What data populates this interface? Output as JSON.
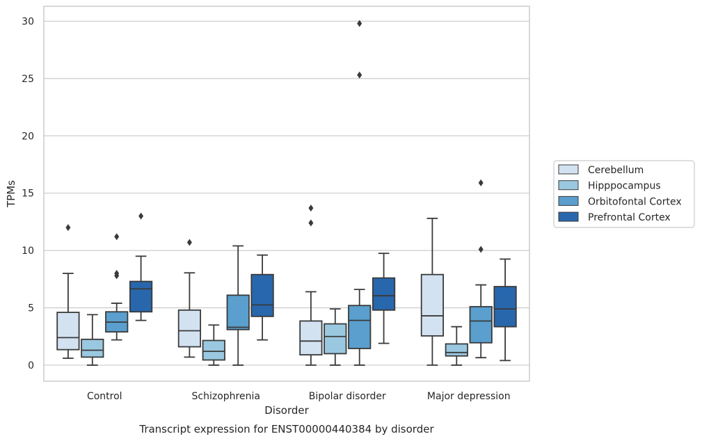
{
  "chart_data": {
    "type": "box",
    "xlabel": "Disorder",
    "ylabel": "TPMs",
    "caption": "Transcript expression for ENST00000440384 by disorder",
    "ylim": [
      -1.4,
      31.3
    ],
    "yticks": [
      0,
      5,
      10,
      15,
      20,
      25,
      30
    ],
    "grid": "horizontal",
    "legend_position": "right",
    "categories": [
      "Control",
      "Schizophrenia",
      "Bipolar disorder",
      "Major depression"
    ],
    "series": [
      {
        "name": "Cerebellum",
        "color": "#d2e2f1",
        "boxes": [
          {
            "whisker_low": 0.6,
            "q1": 1.35,
            "median": 2.4,
            "q3": 4.6,
            "whisker_high": 8.0,
            "outliers": [
              12.0
            ]
          },
          {
            "whisker_low": 0.7,
            "q1": 1.6,
            "median": 3.0,
            "q3": 4.8,
            "whisker_high": 8.05,
            "outliers": [
              10.7
            ]
          },
          {
            "whisker_low": 0.0,
            "q1": 0.9,
            "median": 2.1,
            "q3": 3.85,
            "whisker_high": 6.4,
            "outliers": [
              12.4,
              13.7
            ]
          },
          {
            "whisker_low": 0.0,
            "q1": 2.55,
            "median": 4.3,
            "q3": 7.9,
            "whisker_high": 12.8,
            "outliers": []
          }
        ]
      },
      {
        "name": "Hipppocampus",
        "color": "#9ac8e0",
        "boxes": [
          {
            "whisker_low": 0.0,
            "q1": 0.7,
            "median": 1.3,
            "q3": 2.25,
            "whisker_high": 4.4,
            "outliers": []
          },
          {
            "whisker_low": 0.0,
            "q1": 0.45,
            "median": 1.2,
            "q3": 2.15,
            "whisker_high": 3.5,
            "outliers": []
          },
          {
            "whisker_low": 0.0,
            "q1": 1.0,
            "median": 2.5,
            "q3": 3.6,
            "whisker_high": 4.9,
            "outliers": []
          },
          {
            "whisker_low": 0.0,
            "q1": 0.8,
            "median": 1.1,
            "q3": 1.85,
            "whisker_high": 3.35,
            "outliers": []
          }
        ]
      },
      {
        "name": "Orbitofontal Cortex",
        "color": "#5a9fcd",
        "boxes": [
          {
            "whisker_low": 2.2,
            "q1": 2.9,
            "median": 3.75,
            "q3": 4.65,
            "whisker_high": 5.4,
            "outliers": [
              7.8,
              8.0,
              11.2
            ]
          },
          {
            "whisker_low": 0.0,
            "q1": 3.1,
            "median": 3.3,
            "q3": 6.1,
            "whisker_high": 10.4,
            "outliers": []
          },
          {
            "whisker_low": 0.0,
            "q1": 1.45,
            "median": 3.9,
            "q3": 5.2,
            "whisker_high": 6.6,
            "outliers": [
              25.3,
              29.8
            ]
          },
          {
            "whisker_low": 0.65,
            "q1": 1.95,
            "median": 3.85,
            "q3": 5.1,
            "whisker_high": 7.0,
            "outliers": [
              10.1,
              15.9
            ]
          }
        ]
      },
      {
        "name": "Prefrontal Cortex",
        "color": "#2867ac",
        "boxes": [
          {
            "whisker_low": 3.9,
            "q1": 4.65,
            "median": 6.65,
            "q3": 7.3,
            "whisker_high": 9.5,
            "outliers": [
              13.0
            ]
          },
          {
            "whisker_low": 2.2,
            "q1": 4.25,
            "median": 5.25,
            "q3": 7.9,
            "whisker_high": 9.6,
            "outliers": []
          },
          {
            "whisker_low": 1.9,
            "q1": 4.8,
            "median": 6.05,
            "q3": 7.6,
            "whisker_high": 9.75,
            "outliers": []
          },
          {
            "whisker_low": 0.4,
            "q1": 3.35,
            "median": 4.9,
            "q3": 6.85,
            "whisker_high": 9.25,
            "outliers": []
          }
        ]
      }
    ]
  }
}
